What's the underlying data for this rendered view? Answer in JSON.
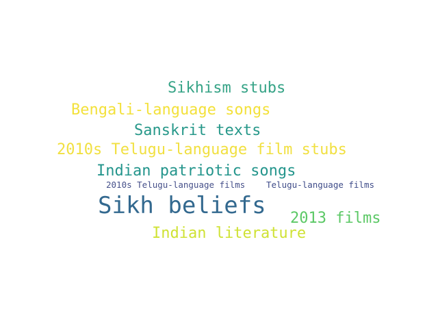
{
  "words": [
    {
      "text": "Sikhism stubs",
      "color": "#35a386"
    },
    {
      "text": "Bengali-language songs",
      "color": "#f3e13b"
    },
    {
      "text": "Sanskrit texts",
      "color": "#27988a"
    },
    {
      "text": "2010s Telugu-language film stubs",
      "color": "#f1e041"
    },
    {
      "text": "Indian patriotic songs",
      "color": "#24958c"
    },
    {
      "text": "2010s Telugu-language films",
      "color": "#46508a"
    },
    {
      "text": "Telugu-language films",
      "color": "#3f4c89"
    },
    {
      "text": "Sikh beliefs",
      "color": "#33698f"
    },
    {
      "text": "2013 films",
      "color": "#5bc865"
    },
    {
      "text": "Indian literature",
      "color": "#cfe234"
    }
  ]
}
